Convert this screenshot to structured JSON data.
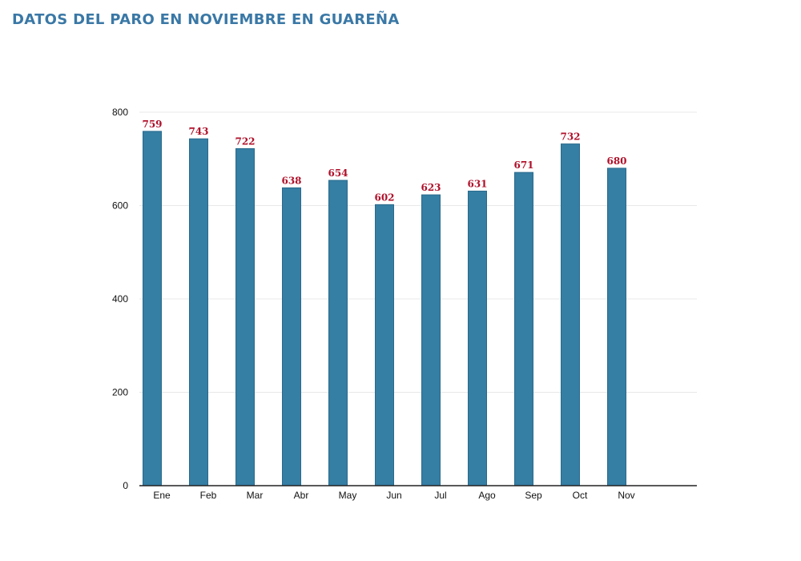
{
  "page": {
    "title": "DATOS DEL PARO EN NOVIEMBRE EN GUAREÑA"
  },
  "colors": {
    "title": "#3a78a6",
    "bar": "#357ea4",
    "bar_edge": "#2a6a8c",
    "data_label": "#b0102a",
    "grid": "#e8e8e8",
    "axis": "#222222"
  },
  "chart_data": {
    "type": "bar",
    "categories": [
      "Ene",
      "Feb",
      "Mar",
      "Abr",
      "May",
      "Jun",
      "Jul",
      "Ago",
      "Sep",
      "Oct",
      "Nov"
    ],
    "series": [
      {
        "values": [
          759,
          743,
          722,
          638,
          654,
          602,
          623,
          631,
          671,
          732,
          680
        ]
      }
    ],
    "data_labels": [
      "759",
      "743",
      "722",
      "638",
      "654",
      "602",
      "623",
      "631",
      "671",
      "732",
      "680"
    ],
    "title": "",
    "xlabel": "",
    "ylabel": "",
    "ylim": [
      0,
      800
    ],
    "yticks": [
      0,
      200,
      400,
      600,
      800
    ],
    "ytick_labels": [
      "0",
      "200",
      "400",
      "600",
      "800"
    ],
    "grid": true,
    "legend": "none"
  }
}
